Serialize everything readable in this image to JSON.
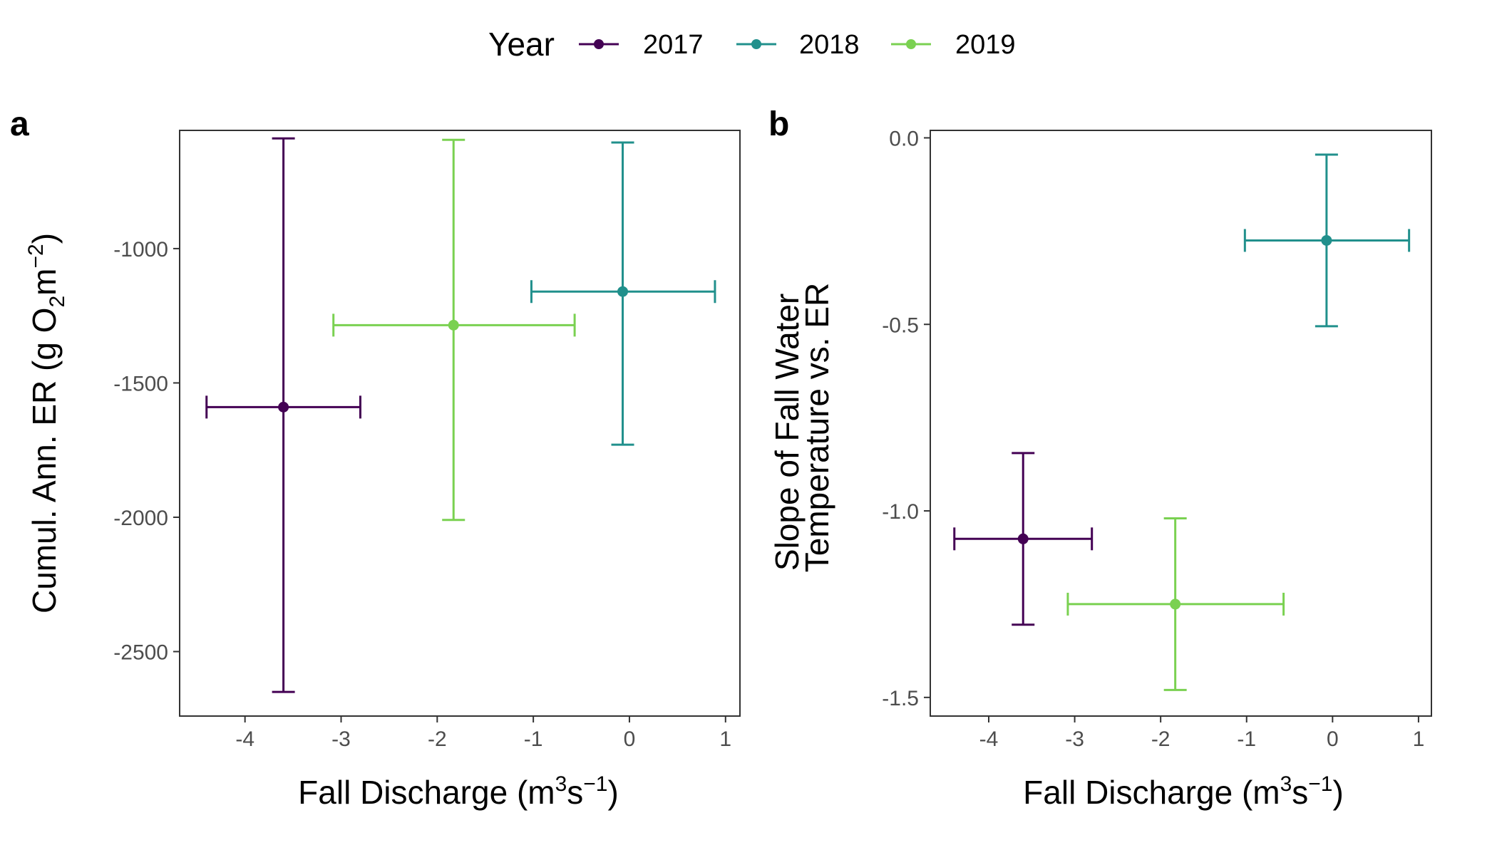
{
  "legend": {
    "title": "Year",
    "entries": [
      {
        "label": "2017",
        "color": "#440154"
      },
      {
        "label": "2018",
        "color": "#21908C"
      },
      {
        "label": "2019",
        "color": "#7AD151"
      }
    ]
  },
  "chart_data": [
    {
      "panel": "a",
      "type": "scatter",
      "error_bars": true,
      "xlabel": "Fall Discharge (m",
      "xlabel_sup1": "3",
      "xlabel_mid": "s",
      "xlabel_sup2": "−1",
      "xlabel_end": ")",
      "ylabel": "Cumul. Ann. ER (g O",
      "ylabel_sub": "2",
      "ylabel_mid": "m",
      "ylabel_sup": "−2",
      "ylabel_end": ")",
      "xlim": [
        -4.68,
        1.15
      ],
      "ylim": [
        -2740,
        -560
      ],
      "xticks": [
        -4,
        -3,
        -2,
        -1,
        0,
        1
      ],
      "xtick_labels": [
        "-4",
        "-3",
        "-2",
        "-1",
        "0",
        "1"
      ],
      "yticks": [
        -1000,
        -1500,
        -2000,
        -2500
      ],
      "ytick_labels": [
        "-1000",
        "-1500",
        "-2000",
        "-2500"
      ],
      "grid": false,
      "legend_position": "top",
      "series": [
        {
          "name": "2017",
          "color": "#440154",
          "x": -3.6,
          "y": -1590,
          "xmin": -4.4,
          "xmax": -2.8,
          "ymin": -2650,
          "ymax": -590
        },
        {
          "name": "2018",
          "color": "#21908C",
          "x": -0.07,
          "y": -1160,
          "xmin": -1.02,
          "xmax": 0.89,
          "ymin": -1730,
          "ymax": -605
        },
        {
          "name": "2019",
          "color": "#7AD151",
          "x": -1.83,
          "y": -1285,
          "xmin": -3.08,
          "xmax": -0.57,
          "ymin": -2010,
          "ymax": -595
        }
      ]
    },
    {
      "panel": "b",
      "type": "scatter",
      "error_bars": true,
      "xlabel": "Fall Discharge (m",
      "xlabel_sup1": "3",
      "xlabel_mid": "s",
      "xlabel_sup2": "−1",
      "xlabel_end": ")",
      "ylabel_line1": "Slope of Fall Water",
      "ylabel_line2": "Temperature vs. ER",
      "xlim": [
        -4.68,
        1.15
      ],
      "ylim": [
        -1.55,
        0.02
      ],
      "xticks": [
        -4,
        -3,
        -2,
        -1,
        0,
        1
      ],
      "xtick_labels": [
        "-4",
        "-3",
        "-2",
        "-1",
        "0",
        "1"
      ],
      "yticks": [
        0.0,
        -0.5,
        -1.0,
        -1.5
      ],
      "ytick_labels": [
        "0.0",
        "-0.5",
        "-1.0",
        "-1.5"
      ],
      "grid": false,
      "legend_position": "top",
      "series": [
        {
          "name": "2017",
          "color": "#440154",
          "x": -3.6,
          "y": -1.075,
          "xmin": -4.4,
          "xmax": -2.8,
          "ymin": -1.305,
          "ymax": -0.845
        },
        {
          "name": "2018",
          "color": "#21908C",
          "x": -0.07,
          "y": -0.275,
          "xmin": -1.02,
          "xmax": 0.89,
          "ymin": -0.505,
          "ymax": -0.045
        },
        {
          "name": "2019",
          "color": "#7AD151",
          "x": -1.83,
          "y": -1.25,
          "xmin": -3.08,
          "xmax": -0.57,
          "ymin": -1.48,
          "ymax": -1.02
        }
      ]
    }
  ]
}
